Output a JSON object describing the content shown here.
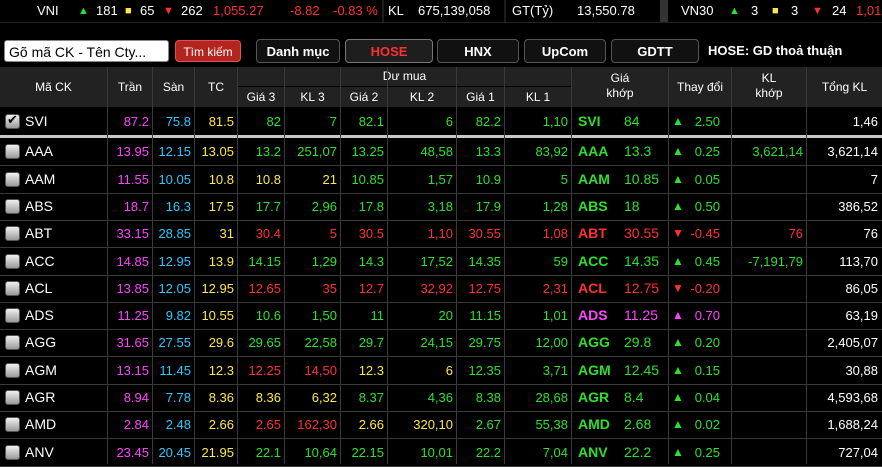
{
  "ticker_bar": {
    "vni_label": "VNI",
    "vni_up": "181",
    "vni_same": "65",
    "vni_down": "262",
    "vni_value": "1,055.27",
    "vni_change": "-8.82",
    "vni_pct": "-0.83 %",
    "kl_label": "KL",
    "kl_value": "675,139,058",
    "gt_label": "GT(Tỷ)",
    "gt_value": "13,550.78",
    "vn30_label": "VN30",
    "vn30_up": "3",
    "vn30_same": "3",
    "vn30_down": "24",
    "vn30_value": "1,01"
  },
  "toolbar": {
    "search_placeholder": "Gõ mã CK - Tên Cty...",
    "search_button": "Tìm kiếm",
    "tabs": [
      "Danh mục",
      "HOSE",
      "HNX",
      "UpCom",
      "GDTT"
    ],
    "active_tab": "HOSE",
    "board_label": "HOSE:  GD thoả thuận"
  },
  "headers": {
    "code": "Mã CK",
    "ceil": "Trần",
    "floor": "Sàn",
    "ref": "TC",
    "bid_group": "Dư mua",
    "price3": "Giá 3",
    "vol3": "KL 3",
    "price2": "Giá 2",
    "vol2": "KL 2",
    "price1": "Giá 1",
    "vol1": "KL 1",
    "match_price_1": "Giá",
    "match_price_2": "khớp",
    "change": "Thay đổi",
    "match_vol_1": "KL",
    "match_vol_2": "khớp",
    "total": "Tổng KL"
  },
  "colors": {
    "up": "#2de02d",
    "down": "#ff3030",
    "ref": "#ffe84a",
    "ceiling": "#ff44ff",
    "floor": "#2ec8ff"
  },
  "rows": [
    {
      "code": "SVI",
      "checked": true,
      "ceil": "87.2",
      "floor": "75.8",
      "ref": "81.5",
      "p3": "82",
      "v3": "7",
      "p2": "82.1",
      "v2": "6",
      "p1": "82.2",
      "v1": "1,10",
      "price": "84",
      "arrow": "▲",
      "change": "2.50",
      "mvol": "",
      "total": "1,46",
      "c3": "g",
      "c2": "g",
      "c1": "g",
      "cm": "g"
    },
    {
      "code": "AAA",
      "checked": false,
      "ceil": "13.95",
      "floor": "12.15",
      "ref": "13.05",
      "p3": "13.2",
      "v3": "251,07",
      "p2": "13.25",
      "v2": "48,58",
      "p1": "13.3",
      "v1": "83,92",
      "price": "13.3",
      "arrow": "▲",
      "change": "0.25",
      "mvol": "3,621,14",
      "total": "3,621,14",
      "c3": "g",
      "c2": "g",
      "c1": "g",
      "cm": "g"
    },
    {
      "code": "AAM",
      "checked": false,
      "ceil": "11.55",
      "floor": "10.05",
      "ref": "10.8",
      "p3": "10.8",
      "v3": "21",
      "p2": "10.85",
      "v2": "1,57",
      "p1": "10.9",
      "v1": "5",
      "price": "10.85",
      "arrow": "▲",
      "change": "0.05",
      "mvol": "",
      "total": "7",
      "c3": "y",
      "c2": "g",
      "c1": "g",
      "cm": "g"
    },
    {
      "code": "ABS",
      "checked": false,
      "ceil": "18.7",
      "floor": "16.3",
      "ref": "17.5",
      "p3": "17.7",
      "v3": "2,96",
      "p2": "17.8",
      "v2": "3,18",
      "p1": "17.9",
      "v1": "1,28",
      "price": "18",
      "arrow": "▲",
      "change": "0.50",
      "mvol": "",
      "total": "386,52",
      "c3": "g",
      "c2": "g",
      "c1": "g",
      "cm": "g"
    },
    {
      "code": "ABT",
      "checked": false,
      "ceil": "33.15",
      "floor": "28.85",
      "ref": "31",
      "p3": "30.4",
      "v3": "5",
      "p2": "30.5",
      "v2": "1,10",
      "p1": "30.55",
      "v1": "1,08",
      "price": "30.55",
      "arrow": "▼",
      "change": "-0.45",
      "mvol": "76",
      "total": "76",
      "c3": "r",
      "c2": "r",
      "c1": "r",
      "cm": "r"
    },
    {
      "code": "ACC",
      "checked": false,
      "ceil": "14.85",
      "floor": "12.95",
      "ref": "13.9",
      "p3": "14.15",
      "v3": "1,29",
      "p2": "14.3",
      "v2": "17,52",
      "p1": "14.35",
      "v1": "59",
      "price": "14.35",
      "arrow": "▲",
      "change": "0.45",
      "mvol": "-7,191,79",
      "total": "113,70",
      "c3": "g",
      "c2": "g",
      "c1": "g",
      "cm": "g"
    },
    {
      "code": "ACL",
      "checked": false,
      "ceil": "13.85",
      "floor": "12.05",
      "ref": "12.95",
      "p3": "12.65",
      "v3": "35",
      "p2": "12.7",
      "v2": "32,92",
      "p1": "12.75",
      "v1": "2,31",
      "price": "12.75",
      "arrow": "▼",
      "change": "-0.20",
      "mvol": "",
      "total": "86,05",
      "c3": "r",
      "c2": "r",
      "c1": "r",
      "cm": "r"
    },
    {
      "code": "ADS",
      "checked": false,
      "ceil": "11.25",
      "floor": "9.82",
      "ref": "10.55",
      "p3": "10.6",
      "v3": "1,50",
      "p2": "11",
      "v2": "20",
      "p1": "11.15",
      "v1": "1,01",
      "price": "11.25",
      "arrow": "▲",
      "change": "0.70",
      "mvol": "",
      "total": "63,19",
      "c3": "g",
      "c2": "g",
      "c1": "g",
      "cm": "p"
    },
    {
      "code": "AGG",
      "checked": false,
      "ceil": "31.65",
      "floor": "27.55",
      "ref": "29.6",
      "p3": "29.65",
      "v3": "22,58",
      "p2": "29.7",
      "v2": "24,15",
      "p1": "29.75",
      "v1": "12,00",
      "price": "29.8",
      "arrow": "▲",
      "change": "0.20",
      "mvol": "",
      "total": "2,405,07",
      "c3": "g",
      "c2": "g",
      "c1": "g",
      "cm": "g"
    },
    {
      "code": "AGM",
      "checked": false,
      "ceil": "13.15",
      "floor": "11.45",
      "ref": "12.3",
      "p3": "12.25",
      "v3": "14,50",
      "p2": "12.3",
      "v2": "6",
      "p1": "12.35",
      "v1": "3,71",
      "price": "12.45",
      "arrow": "▲",
      "change": "0.15",
      "mvol": "",
      "total": "30,88",
      "c3": "r",
      "c2": "y",
      "c1": "g",
      "cm": "g"
    },
    {
      "code": "AGR",
      "checked": false,
      "ceil": "8.94",
      "floor": "7.78",
      "ref": "8.36",
      "p3": "8.36",
      "v3": "6,32",
      "p2": "8.37",
      "v2": "4,36",
      "p1": "8.38",
      "v1": "28,68",
      "price": "8.4",
      "arrow": "▲",
      "change": "0.04",
      "mvol": "",
      "total": "4,593,68",
      "c3": "y",
      "c2": "g",
      "c1": "g",
      "cm": "g"
    },
    {
      "code": "AMD",
      "checked": false,
      "ceil": "2.84",
      "floor": "2.48",
      "ref": "2.66",
      "p3": "2.65",
      "v3": "162,30",
      "p2": "2.66",
      "v2": "320,10",
      "p1": "2.67",
      "v1": "55,38",
      "price": "2.68",
      "arrow": "▲",
      "change": "0.02",
      "mvol": "",
      "total": "1,688,24",
      "c3": "r",
      "c2": "y",
      "c1": "g",
      "cm": "g"
    },
    {
      "code": "ANV",
      "checked": false,
      "ceil": "23.45",
      "floor": "20.45",
      "ref": "21.95",
      "p3": "22.1",
      "v3": "10,64",
      "p2": "22.15",
      "v2": "10,01",
      "p1": "22.2",
      "v1": "7,04",
      "price": "22.2",
      "arrow": "▲",
      "change": "0.25",
      "mvol": "",
      "total": "727,04",
      "c3": "g",
      "c2": "g",
      "c1": "g",
      "cm": "g"
    }
  ]
}
